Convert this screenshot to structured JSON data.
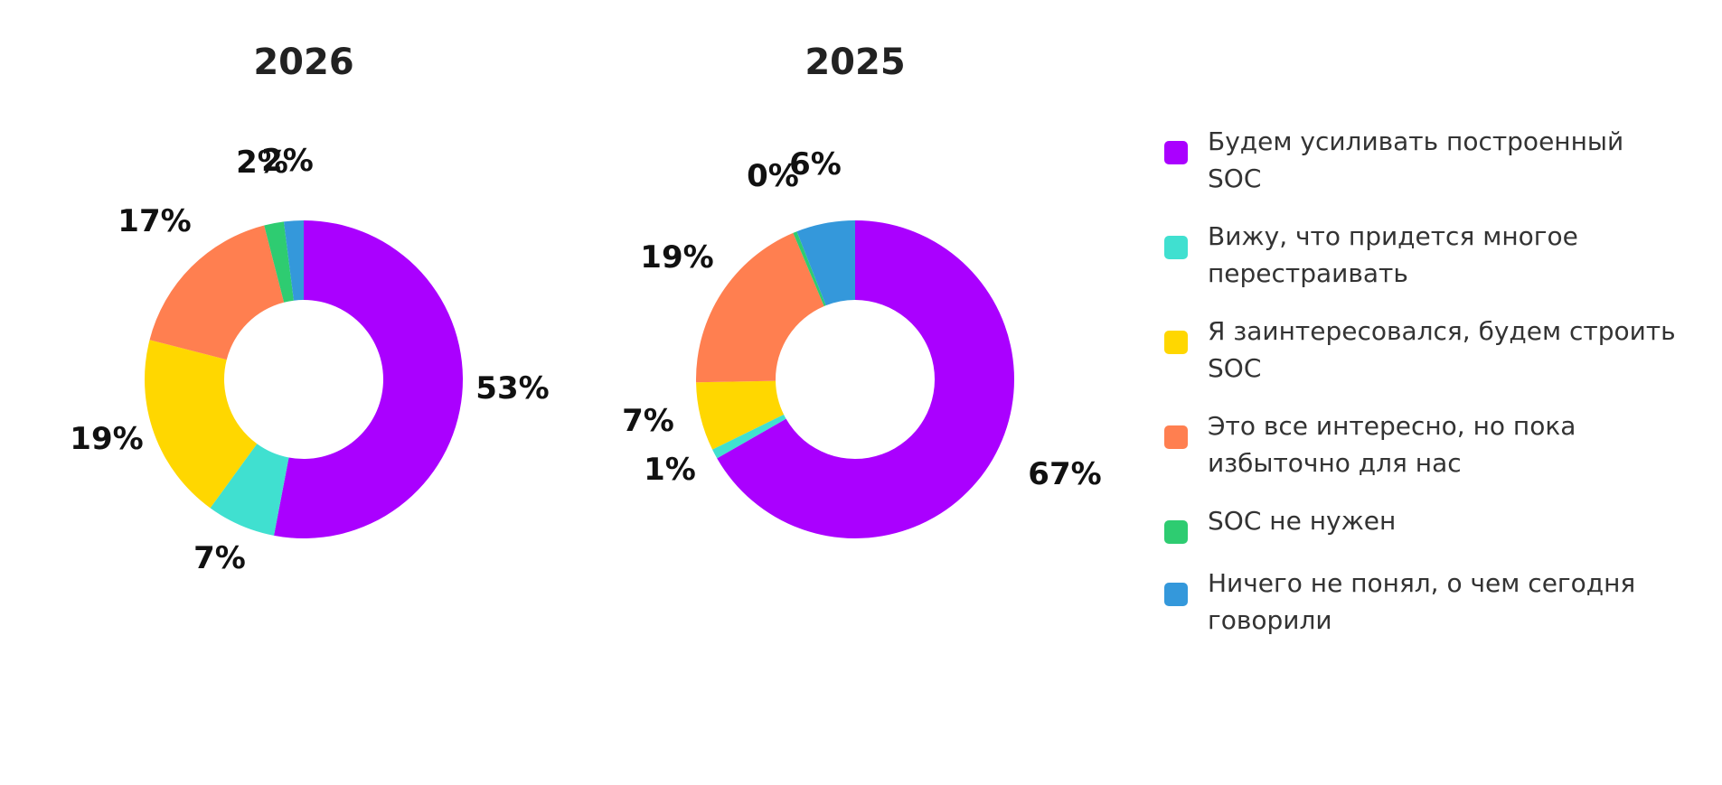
{
  "colors": {
    "strengthen": "#AA00FF",
    "rebuild": "#40E0D0",
    "interested": "#FFD700",
    "excessive": "#FF7F50",
    "not_needed": "#2ECC71",
    "not_understood": "#3498DB"
  },
  "legend": {
    "items": [
      {
        "label": "Будем усиливать построенный\nSOC",
        "color": "#AA00FF"
      },
      {
        "label": "Вижу, что придется многое\nперестраивать",
        "color": "#40E0D0"
      },
      {
        "label": "Я заинтересовался, будем строить\nSOC",
        "color": "#FFD700"
      },
      {
        "label": "Это все интересно, но пока\nизбыточно для нас",
        "color": "#FF7F50"
      },
      {
        "label": "SOC не нужен",
        "color": "#2ECC71"
      },
      {
        "label": "Ничего не понял, о чем сегодня\nговорили",
        "color": "#3498DB"
      }
    ]
  },
  "chart_data": [
    {
      "type": "pie",
      "variant": "donut",
      "title": "2026",
      "categories": [
        "Будем усиливать построенный SOC",
        "Вижу, что придется многое перестраивать",
        "Я заинтересовался, будем строить SOC",
        "Это все интересно, но пока избыточно для нас",
        "SOC не нужен",
        "Ничего не понял, о чем сегодня говорили"
      ],
      "values": [
        53,
        7,
        19,
        17,
        2,
        2
      ],
      "labels": [
        "53%",
        "7%",
        "19%",
        "17%",
        "2%",
        "2%"
      ],
      "colors": [
        "#AA00FF",
        "#40E0D0",
        "#FFD700",
        "#FF7F50",
        "#2ECC71",
        "#3498DB"
      ],
      "start": "top",
      "direction": "clockwise"
    },
    {
      "type": "pie",
      "variant": "donut",
      "title": "2025",
      "categories": [
        "Будем усиливать построенный SOC",
        "Вижу, что придется многое перестраивать",
        "Я заинтересовался, будем строить SOC",
        "Это все интересно, но пока избыточно для нас",
        "SOC не нужен",
        "Ничего не понял, о чем сегодня говорили"
      ],
      "values": [
        67,
        1,
        7,
        19,
        0.4,
        6
      ],
      "labels": [
        "67%",
        "1%",
        "7%",
        "19%",
        "0%",
        "6%"
      ],
      "colors": [
        "#AA00FF",
        "#40E0D0",
        "#FFD700",
        "#FF7F50",
        "#2ECC71",
        "#3498DB"
      ],
      "start": "top",
      "direction": "clockwise"
    }
  ]
}
